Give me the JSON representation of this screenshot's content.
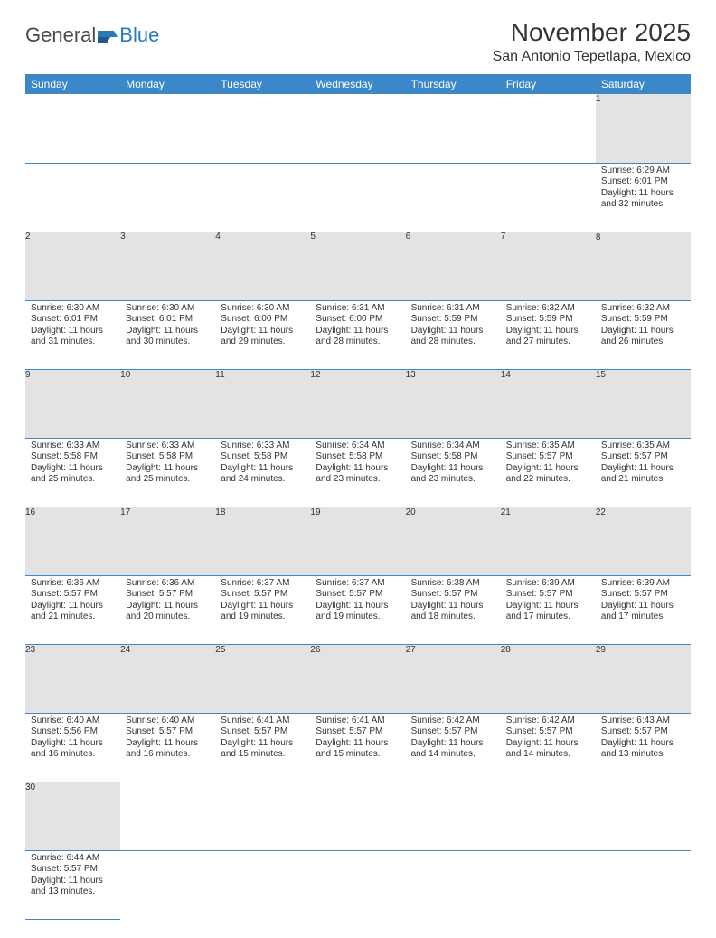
{
  "logo": {
    "part1": "General",
    "part2": "Blue"
  },
  "title": "November 2025",
  "location": "San Antonio Tepetlapa, Mexico",
  "day_headers": [
    "Sunday",
    "Monday",
    "Tuesday",
    "Wednesday",
    "Thursday",
    "Friday",
    "Saturday"
  ],
  "colors": {
    "header_bg": "#3b87c8",
    "header_text": "#ffffff",
    "daynum_bg": "#e3e3e3",
    "cell_border": "#3b87c8",
    "text": "#333333"
  },
  "weeks": [
    [
      null,
      null,
      null,
      null,
      null,
      null,
      {
        "n": "1",
        "sr": "6:29 AM",
        "ss": "6:01 PM",
        "dl": "11 hours and 32 minutes."
      }
    ],
    [
      {
        "n": "2",
        "sr": "6:30 AM",
        "ss": "6:01 PM",
        "dl": "11 hours and 31 minutes."
      },
      {
        "n": "3",
        "sr": "6:30 AM",
        "ss": "6:01 PM",
        "dl": "11 hours and 30 minutes."
      },
      {
        "n": "4",
        "sr": "6:30 AM",
        "ss": "6:00 PM",
        "dl": "11 hours and 29 minutes."
      },
      {
        "n": "5",
        "sr": "6:31 AM",
        "ss": "6:00 PM",
        "dl": "11 hours and 28 minutes."
      },
      {
        "n": "6",
        "sr": "6:31 AM",
        "ss": "5:59 PM",
        "dl": "11 hours and 28 minutes."
      },
      {
        "n": "7",
        "sr": "6:32 AM",
        "ss": "5:59 PM",
        "dl": "11 hours and 27 minutes."
      },
      {
        "n": "8",
        "sr": "6:32 AM",
        "ss": "5:59 PM",
        "dl": "11 hours and 26 minutes."
      }
    ],
    [
      {
        "n": "9",
        "sr": "6:33 AM",
        "ss": "5:58 PM",
        "dl": "11 hours and 25 minutes."
      },
      {
        "n": "10",
        "sr": "6:33 AM",
        "ss": "5:58 PM",
        "dl": "11 hours and 25 minutes."
      },
      {
        "n": "11",
        "sr": "6:33 AM",
        "ss": "5:58 PM",
        "dl": "11 hours and 24 minutes."
      },
      {
        "n": "12",
        "sr": "6:34 AM",
        "ss": "5:58 PM",
        "dl": "11 hours and 23 minutes."
      },
      {
        "n": "13",
        "sr": "6:34 AM",
        "ss": "5:58 PM",
        "dl": "11 hours and 23 minutes."
      },
      {
        "n": "14",
        "sr": "6:35 AM",
        "ss": "5:57 PM",
        "dl": "11 hours and 22 minutes."
      },
      {
        "n": "15",
        "sr": "6:35 AM",
        "ss": "5:57 PM",
        "dl": "11 hours and 21 minutes."
      }
    ],
    [
      {
        "n": "16",
        "sr": "6:36 AM",
        "ss": "5:57 PM",
        "dl": "11 hours and 21 minutes."
      },
      {
        "n": "17",
        "sr": "6:36 AM",
        "ss": "5:57 PM",
        "dl": "11 hours and 20 minutes."
      },
      {
        "n": "18",
        "sr": "6:37 AM",
        "ss": "5:57 PM",
        "dl": "11 hours and 19 minutes."
      },
      {
        "n": "19",
        "sr": "6:37 AM",
        "ss": "5:57 PM",
        "dl": "11 hours and 19 minutes."
      },
      {
        "n": "20",
        "sr": "6:38 AM",
        "ss": "5:57 PM",
        "dl": "11 hours and 18 minutes."
      },
      {
        "n": "21",
        "sr": "6:39 AM",
        "ss": "5:57 PM",
        "dl": "11 hours and 17 minutes."
      },
      {
        "n": "22",
        "sr": "6:39 AM",
        "ss": "5:57 PM",
        "dl": "11 hours and 17 minutes."
      }
    ],
    [
      {
        "n": "23",
        "sr": "6:40 AM",
        "ss": "5:56 PM",
        "dl": "11 hours and 16 minutes."
      },
      {
        "n": "24",
        "sr": "6:40 AM",
        "ss": "5:57 PM",
        "dl": "11 hours and 16 minutes."
      },
      {
        "n": "25",
        "sr": "6:41 AM",
        "ss": "5:57 PM",
        "dl": "11 hours and 15 minutes."
      },
      {
        "n": "26",
        "sr": "6:41 AM",
        "ss": "5:57 PM",
        "dl": "11 hours and 15 minutes."
      },
      {
        "n": "27",
        "sr": "6:42 AM",
        "ss": "5:57 PM",
        "dl": "11 hours and 14 minutes."
      },
      {
        "n": "28",
        "sr": "6:42 AM",
        "ss": "5:57 PM",
        "dl": "11 hours and 14 minutes."
      },
      {
        "n": "29",
        "sr": "6:43 AM",
        "ss": "5:57 PM",
        "dl": "11 hours and 13 minutes."
      }
    ],
    [
      {
        "n": "30",
        "sr": "6:44 AM",
        "ss": "5:57 PM",
        "dl": "11 hours and 13 minutes."
      },
      null,
      null,
      null,
      null,
      null,
      null
    ]
  ],
  "labels": {
    "sunrise": "Sunrise:",
    "sunset": "Sunset:",
    "daylight": "Daylight:"
  }
}
